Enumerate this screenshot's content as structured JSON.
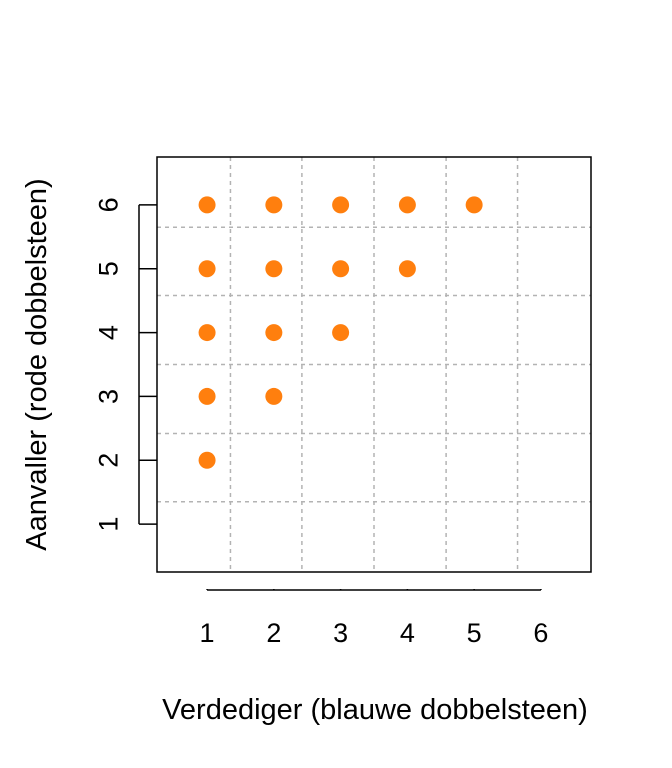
{
  "chart_data": {
    "type": "scatter",
    "title": "",
    "xlabel": "Verdediger (blauwe dobbelsteen)",
    "ylabel": "Aanvaller (rode dobbelsteen)",
    "xlim": [
      0.25,
      6.75
    ],
    "ylim": [
      0.25,
      6.75
    ],
    "x_ticks": [
      1,
      2,
      3,
      4,
      5,
      6
    ],
    "y_ticks": [
      1,
      2,
      3,
      4,
      5,
      6
    ],
    "x_tick_labels": [
      "1",
      "2",
      "3",
      "4",
      "5",
      "6"
    ],
    "y_tick_labels": [
      "1",
      "2",
      "3",
      "4",
      "5",
      "6"
    ],
    "grid": true,
    "grid_lines_x": [
      1.35,
      2.42,
      3.5,
      4.58,
      5.65
    ],
    "grid_lines_y": [
      1.35,
      2.42,
      3.5,
      4.58,
      5.65
    ],
    "point_color": "#ff7f0e",
    "grid_color": "#b3b3b3",
    "points": [
      {
        "x": 1,
        "y": 2
      },
      {
        "x": 1,
        "y": 3
      },
      {
        "x": 1,
        "y": 4
      },
      {
        "x": 1,
        "y": 5
      },
      {
        "x": 1,
        "y": 6
      },
      {
        "x": 2,
        "y": 3
      },
      {
        "x": 2,
        "y": 4
      },
      {
        "x": 2,
        "y": 5
      },
      {
        "x": 2,
        "y": 6
      },
      {
        "x": 3,
        "y": 4
      },
      {
        "x": 3,
        "y": 5
      },
      {
        "x": 3,
        "y": 6
      },
      {
        "x": 4,
        "y": 5
      },
      {
        "x": 4,
        "y": 6
      },
      {
        "x": 5,
        "y": 6
      }
    ]
  }
}
